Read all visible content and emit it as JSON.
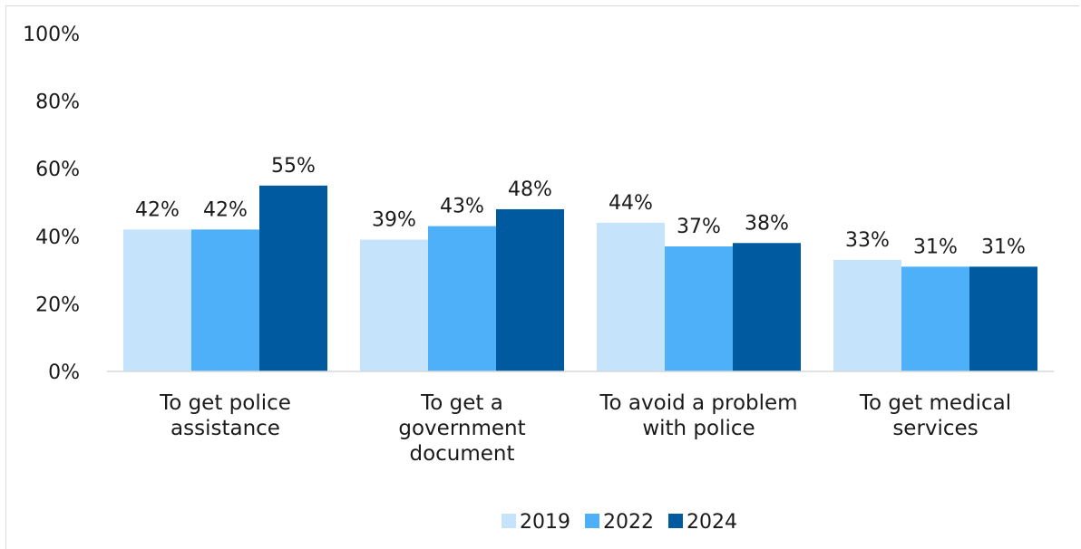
{
  "chart_data": {
    "type": "bar",
    "categories": [
      [
        "To get police",
        "assistance"
      ],
      [
        "To get a",
        "government",
        "document"
      ],
      [
        "To avoid a problem",
        "with police"
      ],
      [
        "To get medical",
        "services"
      ]
    ],
    "series": [
      {
        "name": "2019",
        "values": [
          42,
          39,
          44,
          33
        ],
        "color": "#c5e3fb"
      },
      {
        "name": "2022",
        "values": [
          42,
          43,
          37,
          31
        ],
        "color": "#4fb0fa"
      },
      {
        "name": "2024",
        "values": [
          55,
          48,
          38,
          31
        ],
        "color": "#005aa0"
      }
    ],
    "ylim": [
      0,
      100
    ],
    "yticks": [
      0,
      20,
      40,
      60,
      80,
      100
    ],
    "value_suffix": "%",
    "grid": false,
    "legend": "bottom-center",
    "data_labels": true
  }
}
